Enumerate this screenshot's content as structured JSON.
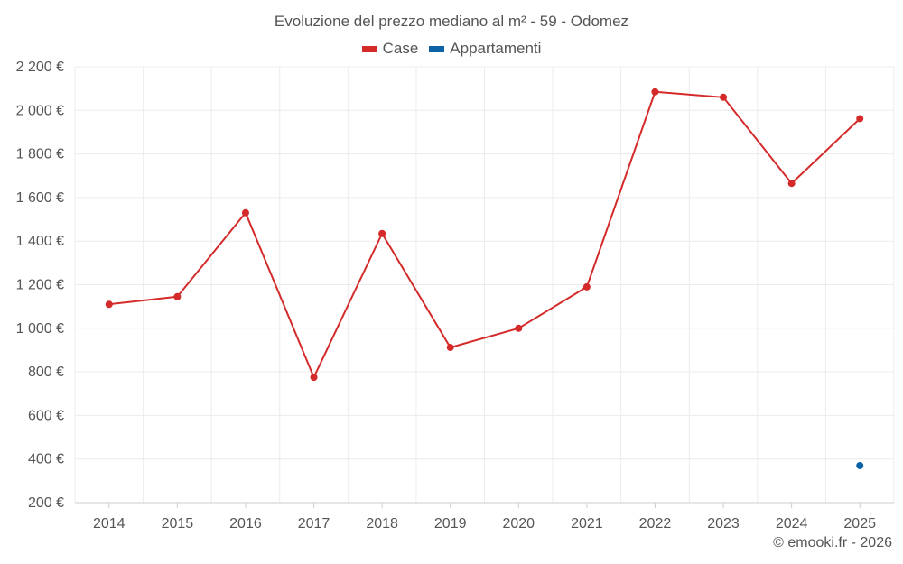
{
  "chart_data": {
    "type": "line",
    "title": "Evoluzione del prezzo mediano al m² - 59 - Odomez",
    "categories": [
      "2014",
      "2015",
      "2016",
      "2017",
      "2018",
      "2019",
      "2020",
      "2021",
      "2022",
      "2023",
      "2024",
      "2025"
    ],
    "series": [
      {
        "name": "Case",
        "color": "#d42a2a",
        "values": [
          1110,
          1145,
          1530,
          775,
          1435,
          912,
          1000,
          1190,
          2085,
          2060,
          1665,
          1962
        ]
      },
      {
        "name": "Appartamenti",
        "color": "#0b63a5",
        "values": [
          null,
          null,
          null,
          null,
          null,
          null,
          null,
          null,
          null,
          null,
          null,
          370
        ]
      }
    ],
    "y_ticks": [
      "2 200 €",
      "2 000 €",
      "1 800 €",
      "1 600 €",
      "1 400 €",
      "1 200 €",
      "1 000 €",
      "800 €",
      "600 €",
      "400 €",
      "200 €"
    ],
    "y_tick_values": [
      2200,
      2000,
      1800,
      1600,
      1400,
      1200,
      1000,
      800,
      600,
      400,
      200
    ],
    "ylim": [
      200,
      2200
    ],
    "xlabel": "",
    "ylabel": "",
    "legend_position": "top-center",
    "grid": true
  },
  "credit": "© emooki.fr - 2026"
}
